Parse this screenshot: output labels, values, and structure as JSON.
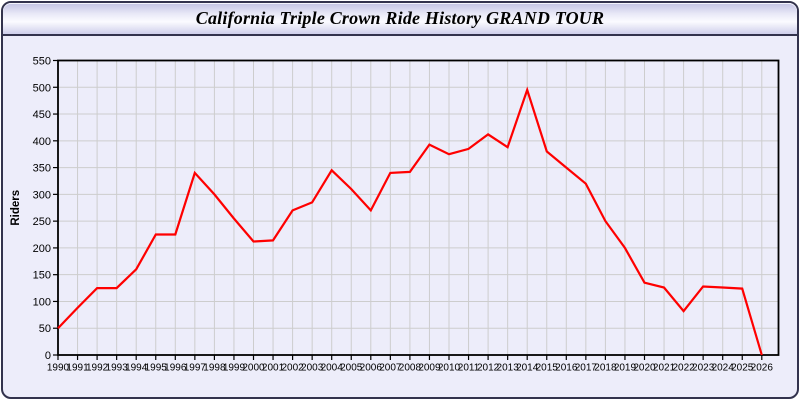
{
  "window": {
    "title": "California Triple Crown Ride History GRAND TOUR"
  },
  "appearance": {
    "line_color": "#ff0000",
    "grid_color": "#cdcdcd",
    "axis_color": "#000000",
    "body_bg": "#ededfa",
    "window_border": "#33334d"
  },
  "chart_data": {
    "type": "line",
    "title": "California Triple Crown Ride History GRAND TOUR",
    "x": [
      1990,
      1991,
      1992,
      1993,
      1994,
      1995,
      1996,
      1997,
      1998,
      1999,
      2000,
      2001,
      2002,
      2003,
      2004,
      2005,
      2006,
      2007,
      2008,
      2009,
      2010,
      2011,
      2012,
      2013,
      2014,
      2015,
      2016,
      2017,
      2018,
      2019,
      2020,
      2021,
      2022,
      2023,
      2024,
      2025,
      2026
    ],
    "series": [
      {
        "name": "Riders",
        "color": "#ff0000",
        "values": [
          50,
          88,
          125,
          125,
          160,
          225,
          225,
          340,
          300,
          255,
          212,
          214,
          270,
          285,
          345,
          310,
          270,
          340,
          342,
          393,
          375,
          385,
          412,
          388,
          495,
          380,
          350,
          320,
          250,
          200,
          135,
          126,
          82,
          128,
          126,
          124,
          0
        ]
      }
    ],
    "xlabel": "",
    "ylabel": "Riders",
    "ylim": [
      0,
      550
    ],
    "ytick_step": 50,
    "grid": true,
    "legend_position": "none"
  }
}
